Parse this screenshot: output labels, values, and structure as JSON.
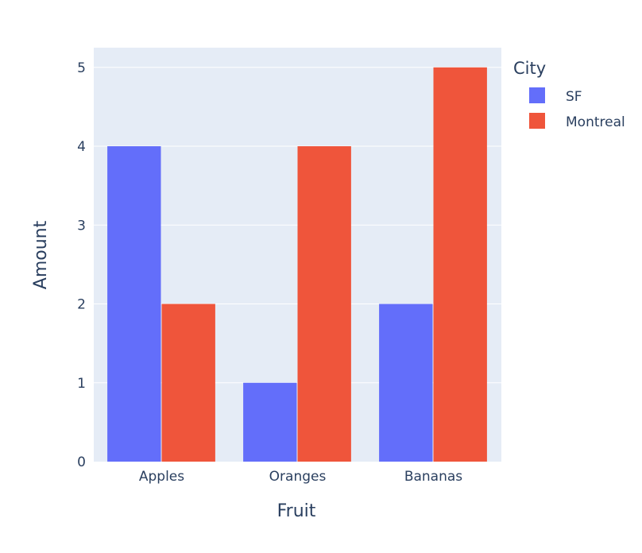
{
  "chart_data": {
    "type": "bar",
    "barmode": "group",
    "categories": [
      "Apples",
      "Oranges",
      "Bananas"
    ],
    "series": [
      {
        "name": "SF",
        "values": [
          4,
          1,
          2
        ],
        "color": "#636efa"
      },
      {
        "name": "Montreal",
        "values": [
          2,
          4,
          5
        ],
        "color": "#ef553b"
      }
    ],
    "xlabel": "Fruit",
    "ylabel": "Amount",
    "ylim": [
      0,
      5.25
    ],
    "yticks": [
      0,
      1,
      2,
      3,
      4,
      5
    ],
    "grid": true,
    "legend": {
      "title": "City",
      "placement": "top-right, outside plot"
    },
    "colors": {
      "plot_background": "#e5ecf6",
      "gridline": "#ffffff",
      "text": "#2a3f5f"
    }
  }
}
